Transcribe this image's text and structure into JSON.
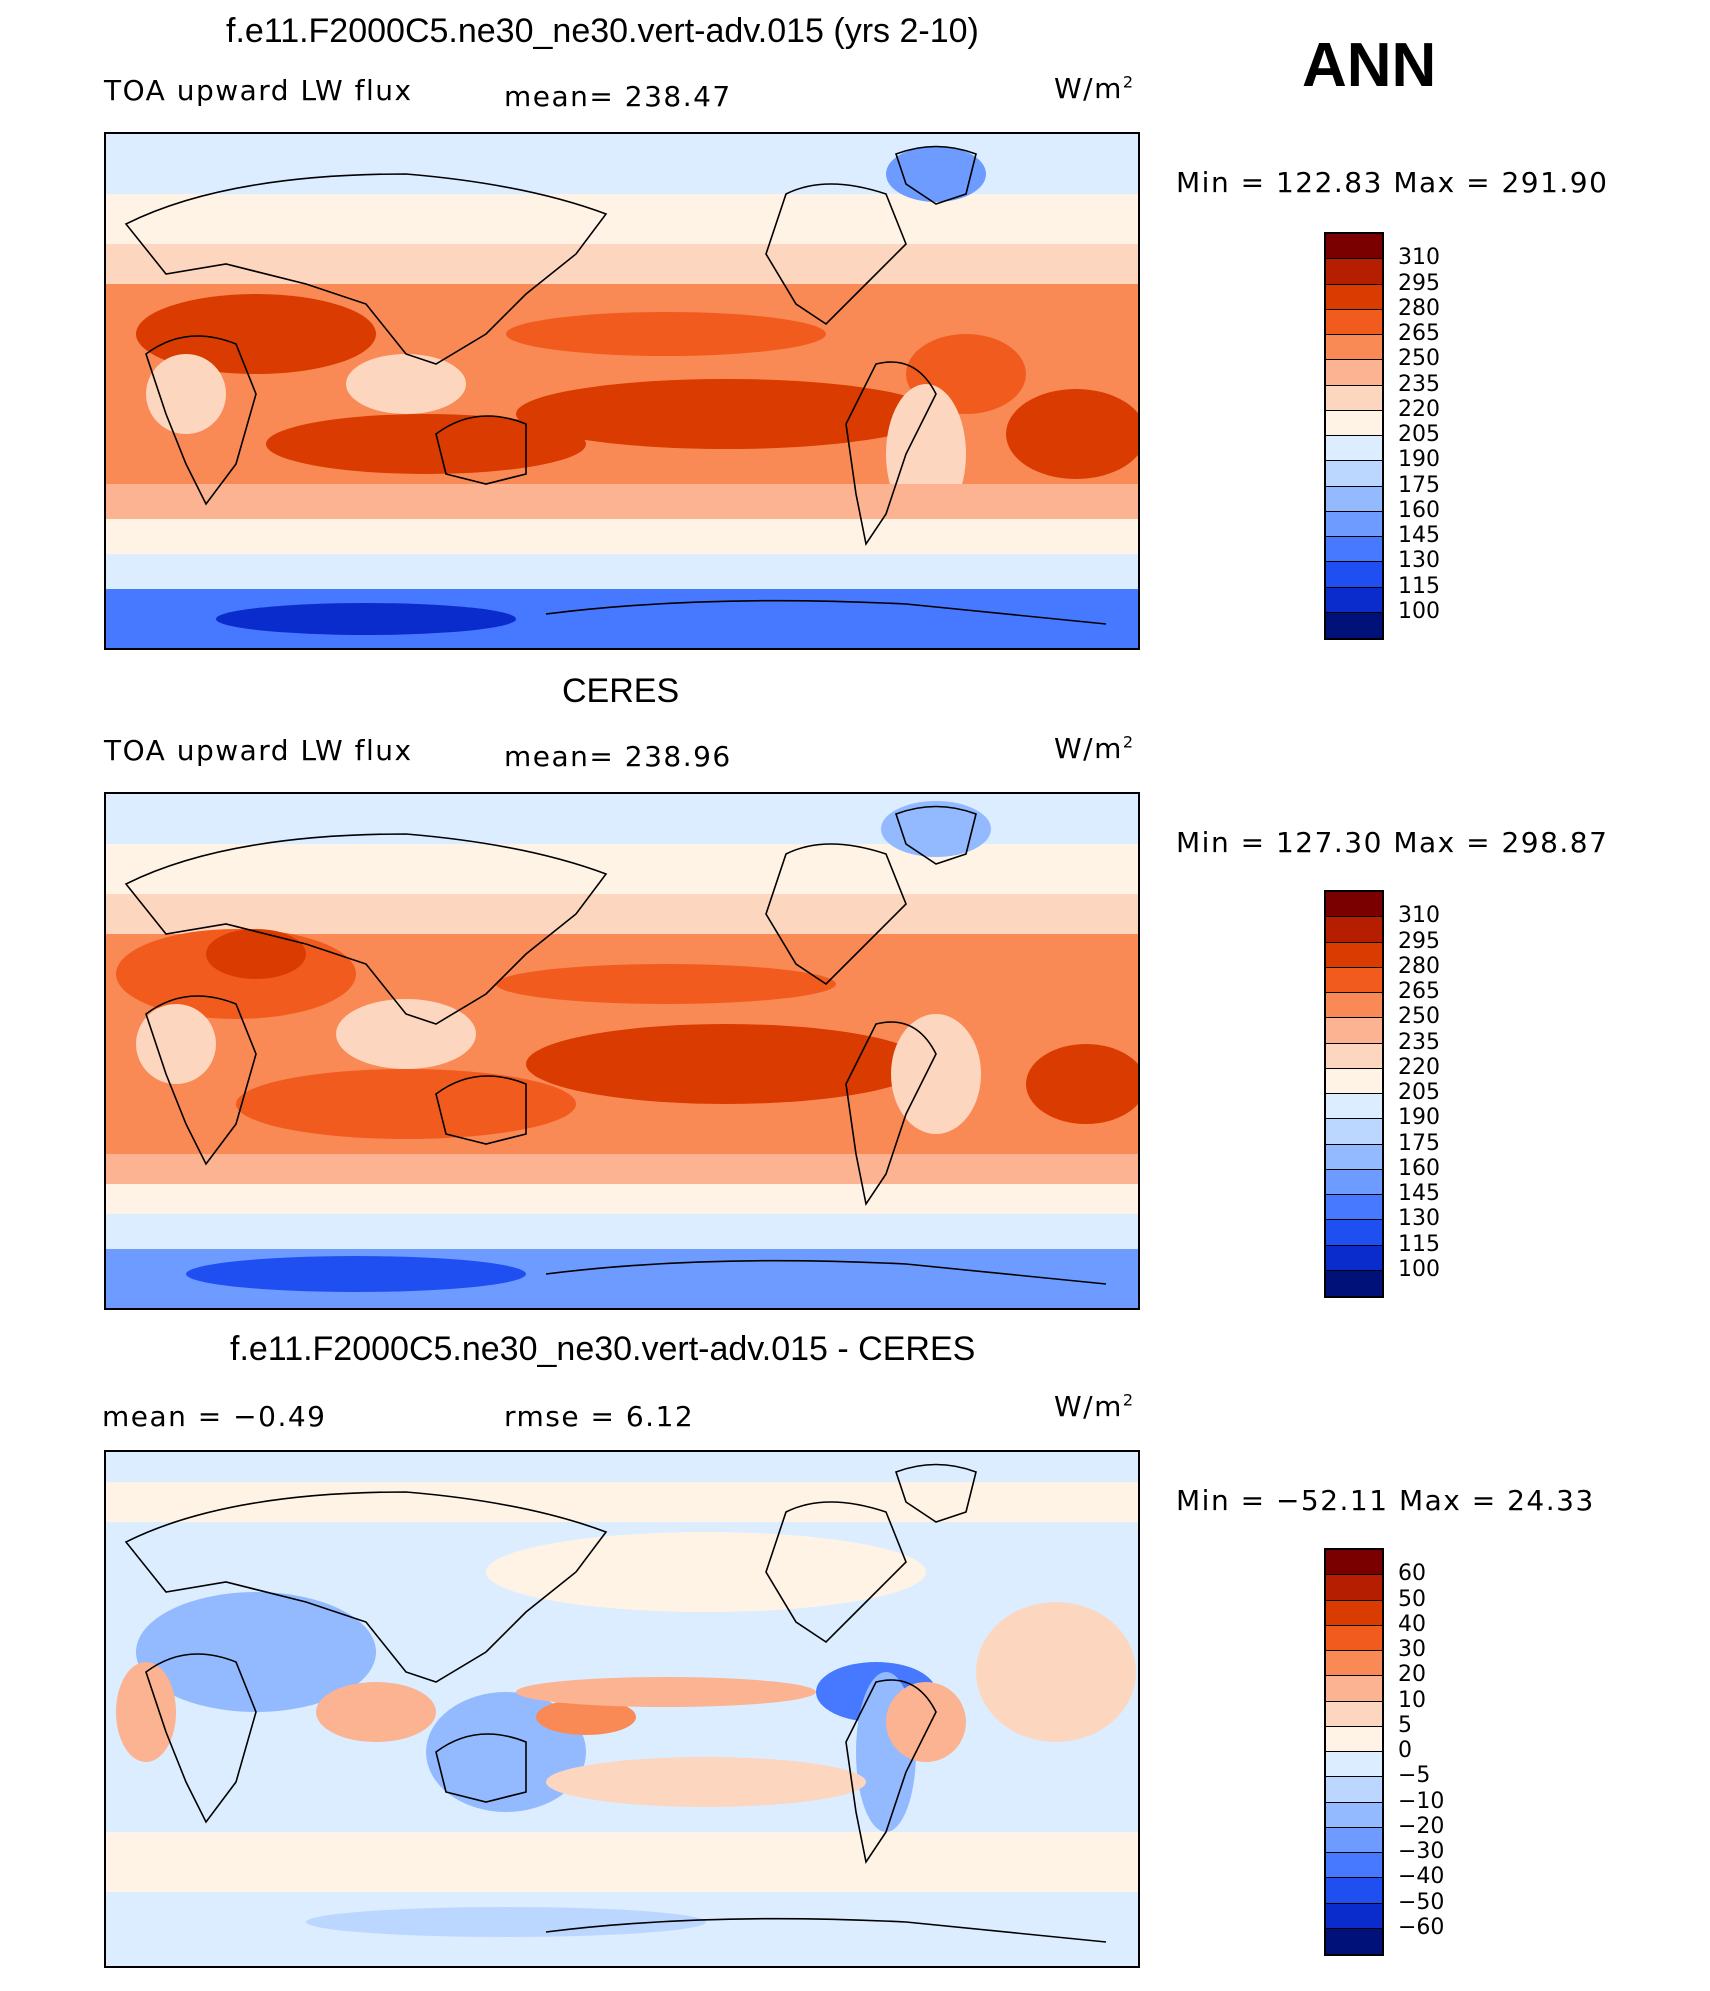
{
  "season": "ANN",
  "units_base": "W/m",
  "units_exp": "2",
  "panels": [
    {
      "title": "f.e11.F2000C5.ne30_ne30.vert-adv.015 (yrs 2-10)",
      "variable": "TOA upward LW flux",
      "stat_text": "mean=  238.47",
      "range_text": "Min  =  122.83  Max  =  291.90",
      "colorbar": {
        "labels": [
          "310",
          "295",
          "280",
          "265",
          "250",
          "235",
          "220",
          "205",
          "190",
          "175",
          "160",
          "145",
          "130",
          "115",
          "100"
        ],
        "colors": [
          "#7a0000",
          "#b51e00",
          "#d93b00",
          "#f15c1e",
          "#f98a55",
          "#fbb391",
          "#fdd6bf",
          "#fff3e6",
          "#dcedff",
          "#bcd7ff",
          "#93b9ff",
          "#6e9bff",
          "#4679ff",
          "#1f4ff1",
          "#0a2ccc",
          "#00127a"
        ]
      },
      "map": {
        "mean": 238.47,
        "min": 122.83,
        "max": 291.9
      }
    },
    {
      "title": "CERES",
      "variable": "TOA upward LW flux",
      "stat_text": "mean=  238.96",
      "range_text": "Min  =  127.30  Max  =  298.87",
      "colorbar": {
        "labels": [
          "310",
          "295",
          "280",
          "265",
          "250",
          "235",
          "220",
          "205",
          "190",
          "175",
          "160",
          "145",
          "130",
          "115",
          "100"
        ],
        "colors": [
          "#7a0000",
          "#b51e00",
          "#d93b00",
          "#f15c1e",
          "#f98a55",
          "#fbb391",
          "#fdd6bf",
          "#fff3e6",
          "#dcedff",
          "#bcd7ff",
          "#93b9ff",
          "#6e9bff",
          "#4679ff",
          "#1f4ff1",
          "#0a2ccc",
          "#00127a"
        ]
      },
      "map": {
        "mean": 238.96,
        "min": 127.3,
        "max": 298.87
      }
    },
    {
      "title": "f.e11.F2000C5.ne30_ne30.vert-adv.015 - CERES",
      "stat_text": "mean  =    −0.49",
      "rmse_text": "rmse  =     6.12",
      "range_text": "Min  =  −52.11  Max  =    24.33",
      "colorbar": {
        "labels": [
          "60",
          "50",
          "40",
          "30",
          "20",
          "10",
          "5",
          "0",
          "−5",
          "−10",
          "−20",
          "−30",
          "−40",
          "−50",
          "−60"
        ],
        "colors": [
          "#7a0000",
          "#b51e00",
          "#d93b00",
          "#f15c1e",
          "#f98a55",
          "#fbb391",
          "#fdd6bf",
          "#fff3e6",
          "#dcedff",
          "#bcd7ff",
          "#93b9ff",
          "#6e9bff",
          "#4679ff",
          "#1f4ff1",
          "#0a2ccc",
          "#00127a"
        ]
      },
      "map": {
        "mean": -0.49,
        "min": -52.11,
        "max": 24.33
      }
    }
  ]
}
